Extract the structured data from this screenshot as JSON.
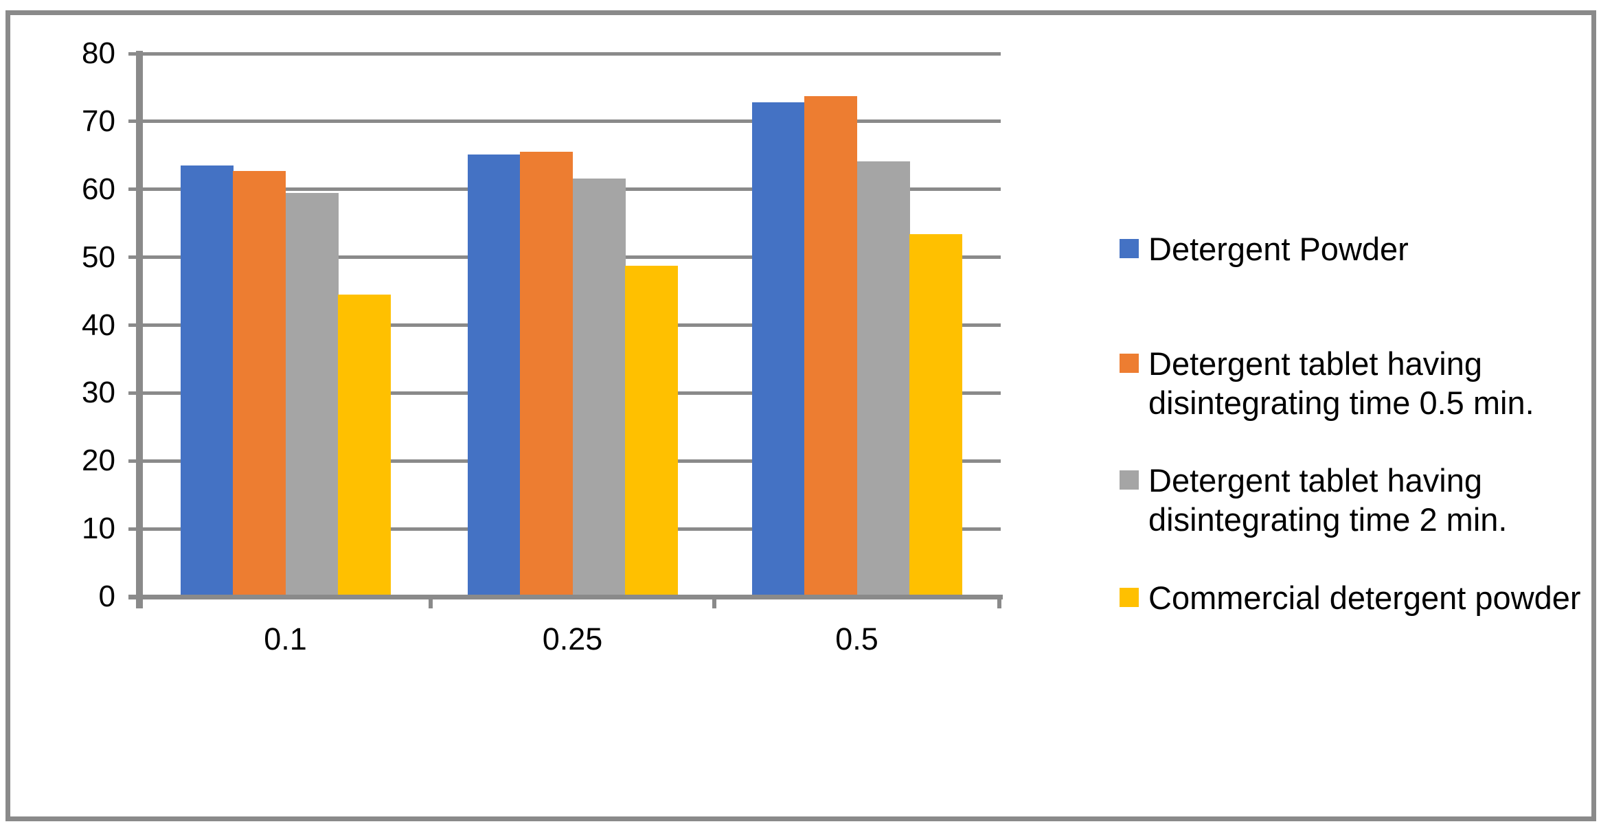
{
  "styles": {
    "background": "#ffffff",
    "border_color": "#8a8a8a",
    "grid_color": "#8a8a8a",
    "axis_color": "#8a8a8a",
    "text_color": "#000000"
  },
  "chart_data": {
    "type": "bar",
    "title": "",
    "xlabel": "",
    "ylabel": "",
    "categories": [
      "0.1",
      "0.25",
      "0.5"
    ],
    "series": [
      {
        "name": "Detergent  Powder",
        "color": "#4472C4",
        "values": [
          63.2,
          64.8,
          72.5
        ]
      },
      {
        "name": "Detergent tablet having\ndisintegrating time 0.5 min.",
        "color": "#ED7D31",
        "values": [
          62.4,
          65.2,
          73.4
        ]
      },
      {
        "name": "Detergent tablet having\ndisintegrating time 2 min.",
        "color": "#A5A5A5",
        "values": [
          59.2,
          61.3,
          63.8
        ]
      },
      {
        "name": "Commercial detergent powder",
        "color": "#FFC000",
        "values": [
          44.2,
          48.4,
          53.1
        ]
      }
    ],
    "y_axis": {
      "min": 0,
      "max": 80,
      "step": 10,
      "tick_labels": [
        "0",
        "10",
        "20",
        "30",
        "40",
        "50",
        "60",
        "70",
        "80"
      ]
    },
    "grid": true,
    "legend_position": "right"
  }
}
